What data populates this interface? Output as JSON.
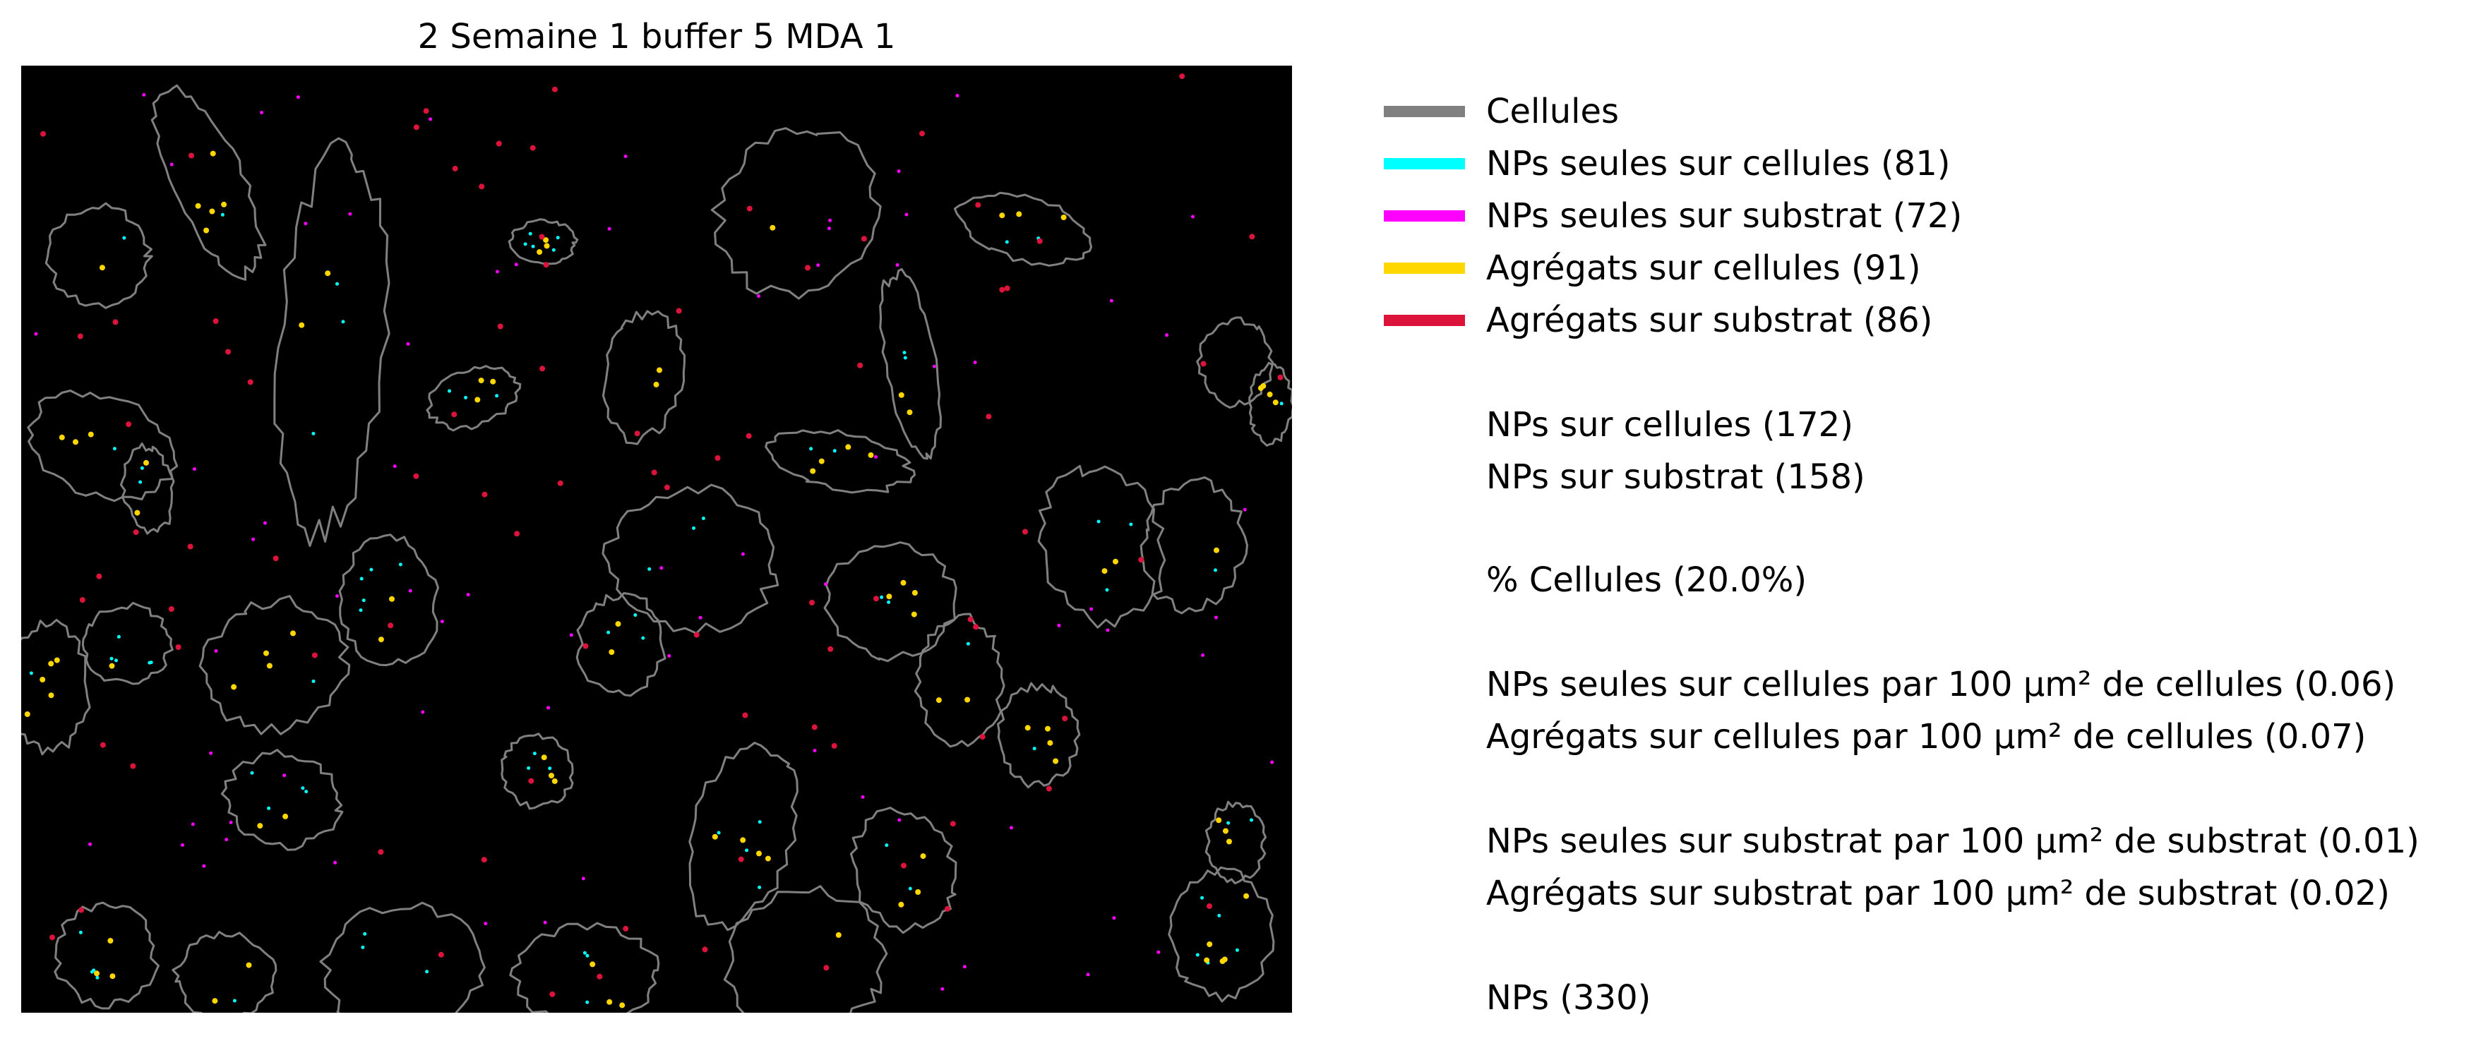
{
  "title": "2 Semaine 1 buffer 5 MDA 1",
  "colors": {
    "background": "#000000",
    "cell_outline": "#808080",
    "nps_on_cells": "#00ffff",
    "nps_on_substrate": "#ff00ff",
    "aggregates_on_cells": "#ffd700",
    "aggregates_on_substrate": "#dc143c"
  },
  "legend": [
    {
      "label": "Cellules",
      "color": "#808080"
    },
    {
      "label": "NPs seules sur cellules (81)",
      "color": "#00ffff"
    },
    {
      "label": "NPs seules sur substrat (72)",
      "color": "#ff00ff"
    },
    {
      "label": "Agrégats sur cellules (91)",
      "color": "#ffd700"
    },
    {
      "label": "Agrégats sur substrat (86)",
      "color": "#dc143c"
    }
  ],
  "stats": {
    "nps_on_cells": "NPs sur cellules (172)",
    "nps_on_substrate": "NPs sur substrat (158)",
    "percent_cells": "% Cellules (20.0%)",
    "nps_alone_cells_density": "NPs seules sur cellules par 100 µm² de cellules (0.06)",
    "aggregates_cells_density": "Agrégats sur cellules par 100 µm² de cellules (0.07)",
    "nps_alone_substrate_density": "NPs seules sur substrat par 100 µm² de substrat (0.01)",
    "aggregates_substrate_density": "Agrégats sur substrat par 100 µm² de substrat (0.02)",
    "nps_total": "NPs (330)"
  }
}
